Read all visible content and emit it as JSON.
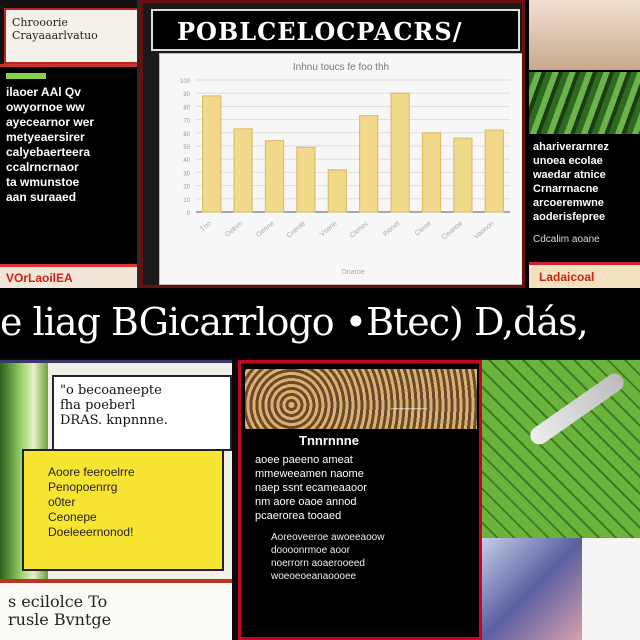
{
  "panels": {
    "top_left": {
      "header": "Chrooorie\nCrayaaarlvatuo",
      "body": "ilaoer AAl Qv\nowyornoe ww\nayecearnor wer\nmetyeaersirer\ncalyebaerteera\nccalrncrnaor\nta wmunstoe\naan suraaed",
      "footer": "VOrLaoilEA"
    },
    "chart": {
      "title": "POBLCELOCPACRS/"
    },
    "top_right": {
      "text": "ahariverarnrez\nunoea ecolae\nwaedar atnice\nCrnarrnacne\narcoeremwne\naoderisfepree",
      "text2": "Cdcalim aoane",
      "footer": "Ladaicoal"
    },
    "banner": {
      "text": "e liag BGicarrlogo •Btec) D,dás,"
    },
    "bottom_left": {
      "caption": "\"o becoaneepte\nfha poeberl\nDRAS. knpnnne.",
      "yellow": "Aoore feeroelrre\nPenopoenrrg\no0ter\nCeonepe\nDoeleeernonod!",
      "footer": "s ecilolce To\nrusle Bvntge"
    },
    "bottom_middle": {
      "label": "————",
      "heading": "Tnnrnnne",
      "text": "aoee paeeno ameat\nmmeweeamen naome\nnaep ssnt ecameaaoor\nnm aore oaoe annod\npcaerorea tooaed",
      "text2": "Aoreoveeroe awoeeaoow\ndoooonrmoe aoor\nnoerrorn aoaerooeed\nwoeoeoeanaoooee"
    }
  },
  "chart_data": {
    "type": "bar",
    "title": "Inhnu toucs fe foo thh",
    "categories": [
      "Tno",
      "Oelnm",
      "Oenne",
      "Cnenle",
      "Vsenn",
      "Clenec",
      "Ihonet",
      "Cteoe",
      "Ceanoe",
      "Vaonon"
    ],
    "values": [
      88,
      63,
      54,
      49,
      32,
      73,
      90,
      60,
      56,
      62
    ],
    "ylim": [
      0,
      100
    ],
    "xlabel": "Onaroe",
    "grid": true,
    "color": "#f1d88a"
  }
}
